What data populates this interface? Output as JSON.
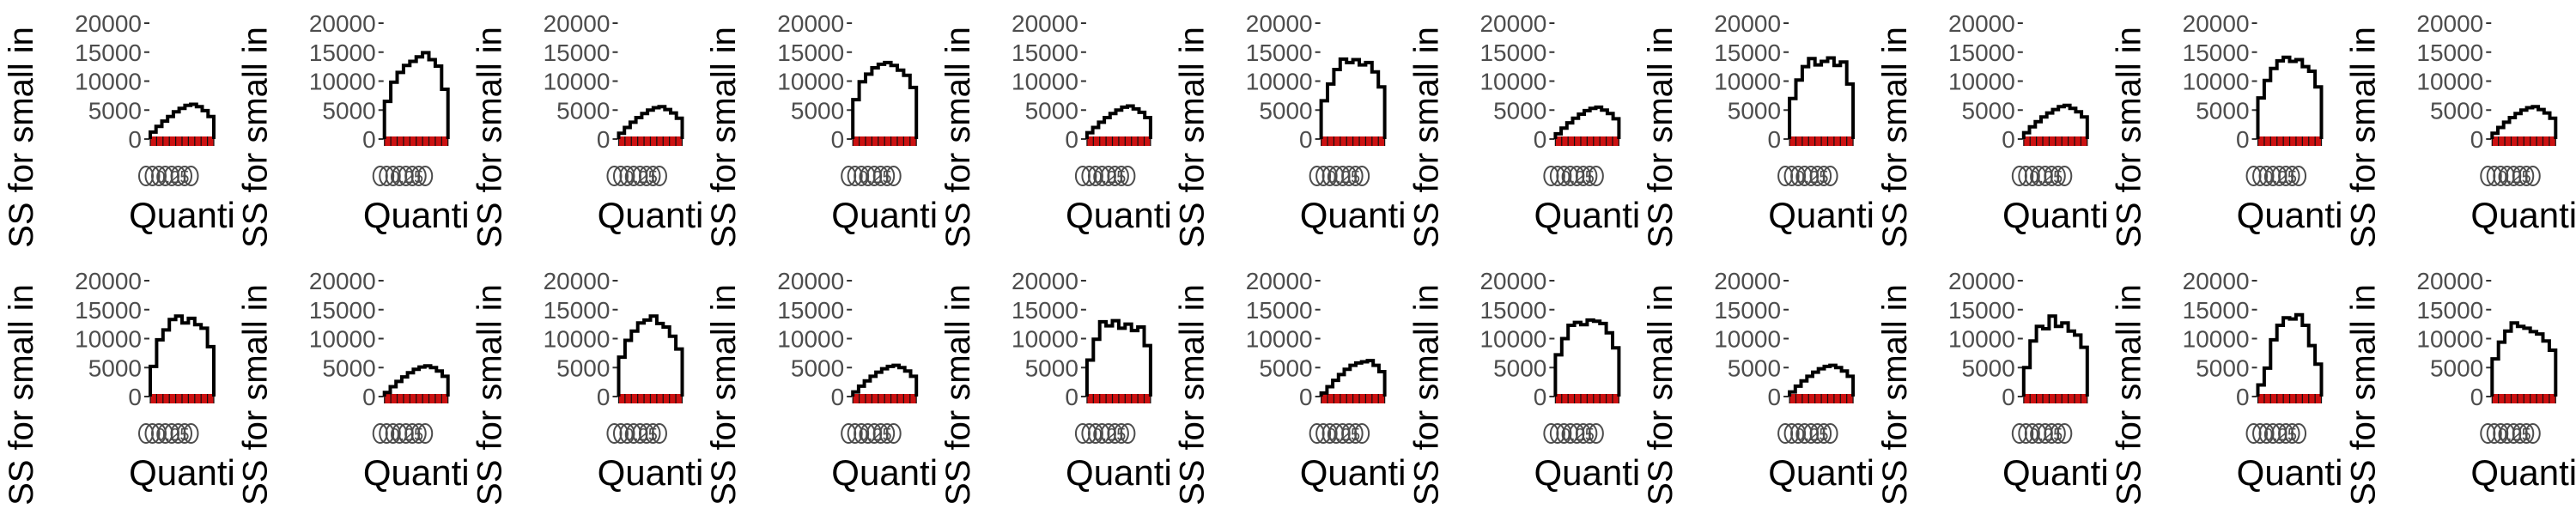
{
  "panel_defaults": {
    "ylabel": "SS for small in",
    "xlabel": "Quanti",
    "yticks": [
      0,
      5000,
      10000,
      15000,
      20000
    ],
    "ylim": [
      0,
      20000
    ],
    "x_tick_text": "0.25",
    "colors": {
      "curve": "#000000",
      "baseline": "#cc1111",
      "text": "#000000",
      "tick_text": "#4d4d4d",
      "axis": "#333333"
    }
  },
  "chart_data": [
    {
      "type": "line",
      "row": 1,
      "col": 1,
      "series": [
        {
          "values": [
            1200,
            2200,
            3100,
            3900,
            4700,
            5300,
            5800,
            6000,
            5600,
            4900,
            3900
          ]
        }
      ]
    },
    {
      "type": "line",
      "row": 1,
      "col": 2,
      "series": [
        {
          "values": [
            6500,
            9800,
            11500,
            12700,
            13400,
            14200,
            14900,
            13700,
            12600,
            8600
          ]
        }
      ]
    },
    {
      "type": "line",
      "row": 1,
      "col": 3,
      "series": [
        {
          "values": [
            1000,
            2000,
            2900,
            3700,
            4400,
            5000,
            5400,
            5600,
            5100,
            4500,
            3600
          ]
        }
      ]
    },
    {
      "type": "line",
      "row": 1,
      "col": 4,
      "series": [
        {
          "values": [
            6800,
            9900,
            11200,
            12300,
            12900,
            13200,
            12700,
            11900,
            11000,
            8900
          ]
        }
      ]
    },
    {
      "type": "line",
      "row": 1,
      "col": 5,
      "series": [
        {
          "values": [
            1100,
            2000,
            2900,
            3700,
            4400,
            5000,
            5500,
            5700,
            5200,
            4600,
            3700
          ]
        }
      ]
    },
    {
      "type": "line",
      "row": 1,
      "col": 6,
      "series": [
        {
          "values": [
            6600,
            9500,
            12000,
            13800,
            13200,
            13700,
            12800,
            13200,
            11600,
            9000
          ]
        }
      ]
    },
    {
      "type": "line",
      "row": 1,
      "col": 7,
      "series": [
        {
          "values": [
            900,
            1900,
            2800,
            3600,
            4300,
            4900,
            5300,
            5500,
            5000,
            4400,
            3500
          ]
        }
      ]
    },
    {
      "type": "line",
      "row": 1,
      "col": 8,
      "series": [
        {
          "values": [
            7000,
            10200,
            12500,
            13900,
            12800,
            13400,
            14000,
            12700,
            13300,
            9500
          ]
        }
      ]
    },
    {
      "type": "line",
      "row": 1,
      "col": 9,
      "series": [
        {
          "values": [
            1100,
            2100,
            3000,
            3800,
            4500,
            5100,
            5600,
            5800,
            5300,
            4700,
            3800
          ]
        }
      ]
    },
    {
      "type": "line",
      "row": 1,
      "col": 10,
      "series": [
        {
          "values": [
            7100,
            10100,
            12200,
            13500,
            14100,
            13400,
            13700,
            12500,
            11700,
            9000
          ]
        }
      ]
    },
    {
      "type": "line",
      "row": 1,
      "col": 11,
      "series": [
        {
          "values": [
            1000,
            2000,
            2900,
            3700,
            4400,
            5000,
            5400,
            5600,
            5100,
            4500,
            3600
          ]
        }
      ]
    },
    {
      "type": "line",
      "row": 2,
      "col": 1,
      "series": [
        {
          "values": [
            5200,
            9800,
            11500,
            13300,
            13900,
            12700,
            13500,
            12400,
            11800,
            8600
          ]
        }
      ]
    },
    {
      "type": "line",
      "row": 2,
      "col": 2,
      "series": [
        {
          "values": [
            700,
            1700,
            2600,
            3400,
            4100,
            4700,
            5100,
            5300,
            5000,
            4400,
            3500
          ]
        }
      ]
    },
    {
      "type": "line",
      "row": 2,
      "col": 3,
      "series": [
        {
          "values": [
            6800,
            9700,
            11300,
            12700,
            13200,
            13900,
            12600,
            12000,
            10400,
            8200
          ]
        }
      ]
    },
    {
      "type": "line",
      "row": 2,
      "col": 4,
      "series": [
        {
          "values": [
            800,
            1800,
            2700,
            3500,
            4200,
            4800,
            5200,
            5400,
            5000,
            4400,
            3500
          ]
        }
      ]
    },
    {
      "type": "line",
      "row": 2,
      "col": 5,
      "series": [
        {
          "values": [
            6300,
            9900,
            12900,
            12200,
            13100,
            11800,
            12500,
            11400,
            12000,
            8800
          ]
        }
      ]
    },
    {
      "type": "line",
      "row": 2,
      "col": 6,
      "series": [
        {
          "values": [
            600,
            1700,
            2800,
            3800,
            4700,
            5400,
            5800,
            6000,
            6200,
            5400,
            4300
          ]
        }
      ]
    },
    {
      "type": "line",
      "row": 2,
      "col": 7,
      "series": [
        {
          "values": [
            7200,
            10000,
            12300,
            12800,
            12400,
            13200,
            13000,
            12600,
            11000,
            8400
          ]
        }
      ]
    },
    {
      "type": "line",
      "row": 2,
      "col": 8,
      "series": [
        {
          "values": [
            800,
            1800,
            2700,
            3500,
            4200,
            4800,
            5200,
            5400,
            5000,
            4400,
            3500
          ]
        }
      ]
    },
    {
      "type": "line",
      "row": 2,
      "col": 9,
      "series": [
        {
          "values": [
            5000,
            9600,
            12100,
            11700,
            13900,
            12100,
            12700,
            11300,
            10600,
            8500
          ]
        }
      ]
    },
    {
      "type": "line",
      "row": 2,
      "col": 10,
      "series": [
        {
          "values": [
            2000,
            4900,
            9800,
            12300,
            13600,
            13400,
            14100,
            12300,
            8800,
            5600
          ]
        }
      ]
    },
    {
      "type": "line",
      "row": 2,
      "col": 11,
      "series": [
        {
          "values": [
            6500,
            9400,
            11300,
            12700,
            12100,
            11800,
            11200,
            10800,
            9600,
            8000
          ]
        }
      ]
    }
  ]
}
